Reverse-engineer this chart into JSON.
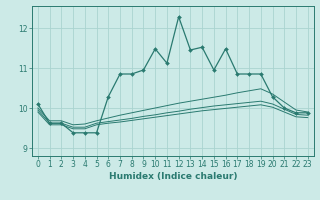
{
  "title": "",
  "xlabel": "Humidex (Indice chaleur)",
  "ylabel": "",
  "xlim": [
    -0.5,
    23.5
  ],
  "ylim": [
    8.8,
    12.55
  ],
  "yticks": [
    9,
    10,
    11,
    12
  ],
  "xticks": [
    0,
    1,
    2,
    3,
    4,
    5,
    6,
    7,
    8,
    9,
    10,
    11,
    12,
    13,
    14,
    15,
    16,
    17,
    18,
    19,
    20,
    21,
    22,
    23
  ],
  "bg_color": "#cceae7",
  "grid_color": "#aad4d0",
  "line_color": "#2a7a70",
  "line1_x": [
    0,
    1,
    2,
    3,
    4,
    5,
    6,
    7,
    8,
    9,
    10,
    11,
    12,
    13,
    14,
    15,
    16,
    17,
    18,
    19,
    20,
    21,
    22,
    23
  ],
  "line1_y": [
    10.1,
    9.62,
    9.62,
    9.38,
    9.38,
    9.38,
    10.28,
    10.85,
    10.85,
    10.95,
    11.48,
    11.12,
    12.28,
    11.45,
    11.52,
    10.95,
    11.48,
    10.85,
    10.85,
    10.85,
    10.28,
    10.0,
    9.88,
    9.88
  ],
  "line2_x": [
    0,
    1,
    2,
    3,
    4,
    5,
    6,
    7,
    8,
    9,
    10,
    11,
    12,
    13,
    14,
    15,
    16,
    17,
    18,
    19,
    20,
    21,
    22,
    23
  ],
  "line2_y": [
    10.0,
    9.68,
    9.68,
    9.58,
    9.6,
    9.68,
    9.75,
    9.82,
    9.88,
    9.94,
    10.0,
    10.06,
    10.12,
    10.17,
    10.22,
    10.27,
    10.32,
    10.38,
    10.43,
    10.48,
    10.35,
    10.15,
    9.95,
    9.9
  ],
  "line3_x": [
    0,
    1,
    2,
    3,
    4,
    5,
    6,
    7,
    8,
    9,
    10,
    11,
    12,
    13,
    14,
    15,
    16,
    17,
    18,
    19,
    20,
    21,
    22,
    23
  ],
  "line3_y": [
    9.95,
    9.62,
    9.62,
    9.52,
    9.52,
    9.62,
    9.66,
    9.7,
    9.74,
    9.79,
    9.83,
    9.88,
    9.92,
    9.97,
    10.01,
    10.05,
    10.08,
    10.11,
    10.14,
    10.17,
    10.1,
    9.97,
    9.84,
    9.82
  ],
  "line4_x": [
    0,
    1,
    2,
    3,
    4,
    5,
    6,
    7,
    8,
    9,
    10,
    11,
    12,
    13,
    14,
    15,
    16,
    17,
    18,
    19,
    20,
    21,
    22,
    23
  ],
  "line4_y": [
    9.9,
    9.58,
    9.58,
    9.48,
    9.48,
    9.58,
    9.62,
    9.65,
    9.69,
    9.73,
    9.77,
    9.81,
    9.85,
    9.89,
    9.93,
    9.96,
    9.99,
    10.02,
    10.05,
    10.08,
    10.02,
    9.9,
    9.78,
    9.76
  ]
}
